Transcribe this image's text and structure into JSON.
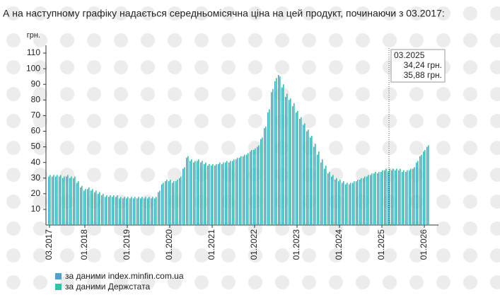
{
  "chart_data": {
    "type": "bar",
    "title": "А на наступному графіку надається середньомісячна ціна на цей продукт, починаючи з 03.2017:",
    "y_label": "грн.",
    "ylim": [
      0,
      115
    ],
    "yticks": [
      10,
      20,
      30,
      40,
      50,
      60,
      70,
      80,
      90,
      100,
      110
    ],
    "categories": [
      "03.2017",
      null,
      null,
      null,
      null,
      null,
      null,
      null,
      null,
      null,
      "01.2018",
      null,
      null,
      null,
      null,
      null,
      null,
      null,
      null,
      null,
      null,
      null,
      "01.2019",
      null,
      null,
      null,
      null,
      null,
      null,
      null,
      null,
      null,
      null,
      null,
      "01.2020",
      null,
      null,
      null,
      null,
      null,
      null,
      null,
      null,
      null,
      null,
      null,
      "01.2021",
      null,
      null,
      null,
      null,
      null,
      null,
      null,
      null,
      null,
      null,
      null,
      "01.2022",
      null,
      null,
      null,
      null,
      null,
      null,
      null,
      null,
      null,
      null,
      null,
      "01.2023",
      null,
      null,
      null,
      null,
      null,
      null,
      null,
      null,
      null,
      null,
      null,
      "01.2024",
      null,
      null,
      null,
      null,
      null,
      null,
      null,
      null,
      null,
      null,
      null,
      "01.2025",
      null,
      null,
      null,
      null,
      null,
      null,
      null,
      null,
      null,
      null,
      null,
      "01.2026",
      null
    ],
    "tooltip": {
      "title": "03.2025"
    },
    "series": [
      {
        "name": "за даними index.minfin.com.ua",
        "color": "#4ba3cf",
        "values": [
          31,
          31,
          31,
          31,
          30,
          31,
          30,
          30,
          27,
          24,
          22,
          23,
          22,
          21,
          20,
          19,
          18,
          18,
          18,
          18,
          17,
          17,
          17,
          17,
          17,
          17,
          17,
          17,
          17,
          17,
          17,
          21,
          26,
          28,
          28,
          27,
          28,
          30,
          36,
          43,
          41,
          40,
          41,
          40,
          39,
          38,
          38,
          38,
          39,
          39,
          40,
          40,
          41,
          42,
          43,
          44,
          45,
          47,
          48,
          50,
          55,
          62,
          72,
          85,
          92,
          96,
          88,
          82,
          80,
          76,
          72,
          68,
          64,
          60,
          56,
          50,
          45,
          40,
          36,
          33,
          31,
          29,
          28,
          27,
          26,
          26,
          27,
          28,
          29,
          30,
          31,
          32,
          33,
          33,
          34,
          35,
          34.24,
          35,
          35,
          35,
          34,
          34,
          35,
          36,
          40,
          44,
          47,
          50
        ],
        "value_labels": [
          null,
          null,
          null,
          null,
          null,
          null,
          null,
          null,
          null,
          null,
          null,
          null,
          null,
          null,
          null,
          null,
          null,
          null,
          null,
          null,
          null,
          null,
          null,
          null,
          null,
          null,
          null,
          null,
          null,
          null,
          null,
          null,
          null,
          null,
          null,
          null,
          null,
          null,
          null,
          null,
          null,
          null,
          null,
          null,
          null,
          null,
          null,
          null,
          null,
          null,
          null,
          null,
          null,
          null,
          null,
          null,
          null,
          null,
          null,
          null,
          null,
          null,
          null,
          null,
          null,
          null,
          null,
          null,
          null,
          null,
          null,
          null,
          null,
          null,
          null,
          null,
          null,
          null,
          null,
          null,
          null,
          null,
          null,
          null,
          null,
          null,
          null,
          null,
          null,
          null,
          null,
          null,
          null,
          null,
          null,
          null,
          "34,24 грн.",
          null,
          null,
          null,
          null,
          null,
          null,
          null,
          null,
          null,
          null,
          null
        ]
      },
      {
        "name": "за даними Держстата",
        "color": "#2ec4a6",
        "values": [
          32,
          32,
          32,
          32,
          31,
          32,
          31,
          31,
          28,
          25,
          23,
          24,
          23,
          22,
          21,
          20,
          19,
          19,
          19,
          19,
          18,
          18,
          18,
          18,
          18,
          18,
          18,
          18,
          18,
          18,
          18,
          22,
          27,
          29,
          29,
          28,
          29,
          31,
          37,
          44,
          42,
          41,
          42,
          41,
          40,
          39,
          39,
          39,
          40,
          40,
          41,
          41,
          42,
          43,
          44,
          45,
          46,
          48,
          49,
          51,
          56,
          63,
          74,
          87,
          94,
          95,
          90,
          84,
          81,
          78,
          73,
          69,
          65,
          61,
          57,
          52,
          47,
          42,
          38,
          34,
          32,
          30,
          29,
          28,
          27,
          27,
          28,
          29,
          30,
          31,
          32,
          33,
          34,
          34,
          35,
          36,
          35.88,
          36,
          36,
          36,
          35,
          35,
          36,
          37,
          41,
          45,
          48,
          51
        ],
        "value_labels": [
          null,
          null,
          null,
          null,
          null,
          null,
          null,
          null,
          null,
          null,
          null,
          null,
          null,
          null,
          null,
          null,
          null,
          null,
          null,
          null,
          null,
          null,
          null,
          null,
          null,
          null,
          null,
          null,
          null,
          null,
          null,
          null,
          null,
          null,
          null,
          null,
          null,
          null,
          null,
          null,
          null,
          null,
          null,
          null,
          null,
          null,
          null,
          null,
          null,
          null,
          null,
          null,
          null,
          null,
          null,
          null,
          null,
          null,
          null,
          null,
          null,
          null,
          null,
          null,
          null,
          null,
          null,
          null,
          null,
          null,
          null,
          null,
          null,
          null,
          null,
          null,
          null,
          null,
          null,
          null,
          null,
          null,
          null,
          null,
          null,
          null,
          null,
          null,
          null,
          null,
          null,
          null,
          null,
          null,
          null,
          null,
          "35,88 грн.",
          null,
          null,
          null,
          null,
          null,
          null,
          null,
          null,
          null,
          null,
          null
        ]
      }
    ]
  }
}
